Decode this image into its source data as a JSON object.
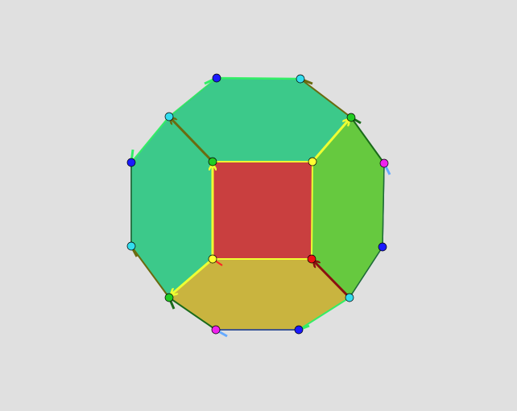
{
  "scene": {
    "background": "#e0e0e0",
    "outline_color": "#1f6b3a"
  },
  "faces": [
    {
      "name": "face-left-teal",
      "color": "#3cc98a"
    },
    {
      "name": "face-right-green",
      "color": "#66c93f"
    },
    {
      "name": "face-bottom-olive",
      "color": "#c9b43f"
    },
    {
      "name": "face-center-red",
      "color": "#c93f3f"
    }
  ],
  "vertex_colors": {
    "blue": "#1a1aff",
    "cyan": "#33ddee",
    "green": "#22cc22",
    "yellow": "#ffff33",
    "magenta": "#ee22ee",
    "red": "#ee1111"
  },
  "edge_colors": {
    "bright_green": "#33ee66",
    "olive": "#6b6b10",
    "yellow": "#eeff33",
    "dark_red": "#8b1010",
    "dark_green": "#1a6b1a",
    "red": "#ff2222",
    "light_blue": "#66aaff"
  }
}
